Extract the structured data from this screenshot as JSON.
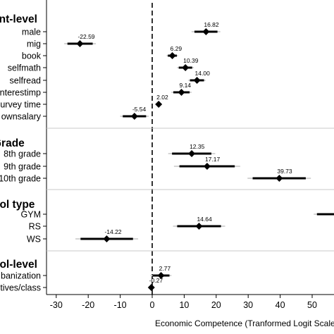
{
  "chart_data": {
    "type": "scatter",
    "subtype": "coefficient-plot",
    "xlabel": "Economic Competence (Tranformed Logit Scale from IRT)",
    "xlim": [
      -31,
      57
    ],
    "xticks": [
      -30,
      -20,
      -10,
      0,
      10,
      20,
      30,
      40,
      50
    ],
    "reference_line": 0,
    "groups": [
      {
        "label": "ent-level",
        "rows": [
          {
            "label": "male",
            "value": 16.82,
            "value_label": "16.82",
            "ci95": [
              12.3,
              21.3
            ],
            "ci90": [
              13.2,
              20.4
            ]
          },
          {
            "label": "mig",
            "value": -22.59,
            "value_label": "-22.59",
            "ci95": [
              -27.5,
              -17.6
            ],
            "ci90": [
              -26.5,
              -18.6
            ]
          },
          {
            "label": "book",
            "value": 6.29,
            "value_label": "6.29",
            "ci95": [
              4.5,
              8.1
            ],
            "ci90": [
              4.9,
              7.7
            ]
          },
          {
            "label": "selfmath",
            "value": 10.39,
            "value_label": "10.39",
            "ci95": [
              7.8,
              13.0
            ],
            "ci90": [
              8.3,
              12.5
            ]
          },
          {
            "label": "selfread",
            "value": 14.0,
            "value_label": "14.00",
            "ci95": [
              11.3,
              16.7
            ],
            "ci90": [
              11.8,
              16.2
            ]
          },
          {
            "label": "nterestimp",
            "value": 9.14,
            "value_label": "9.14",
            "ci95": [
              6.0,
              12.3
            ],
            "ci90": [
              6.6,
              11.7
            ]
          },
          {
            "label": "urvey time",
            "value": 2.02,
            "value_label": "2.02",
            "ci95": [
              1.6,
              2.4
            ],
            "ci90": [
              1.7,
              2.3
            ]
          },
          {
            "label": "ownsalary",
            "value": -5.54,
            "value_label": "-5.54",
            "ci95": [
              -10.0,
              -1.1
            ],
            "ci90": [
              -9.2,
              -1.9
            ]
          }
        ]
      },
      {
        "label": "Grade",
        "rows": [
          {
            "label": "8th grade",
            "value": 12.35,
            "value_label": "12.35",
            "ci95": [
              5.0,
              19.7
            ],
            "ci90": [
              6.2,
              18.5
            ]
          },
          {
            "label": "9th grade",
            "value": 17.17,
            "value_label": "17.17",
            "ci95": [
              6.8,
              27.5
            ],
            "ci90": [
              8.5,
              25.8
            ]
          },
          {
            "label": "10th grade",
            "value": 39.73,
            "value_label": "39.73",
            "ci95": [
              29.8,
              49.6
            ],
            "ci90": [
              31.4,
              48.0
            ]
          }
        ]
      },
      {
        "label": "ool type",
        "rows": [
          {
            "label": "GYM",
            "value": null,
            "value_label": "",
            "ci95": [
              50.5,
              57
            ],
            "ci90": [
              51.5,
              57
            ]
          },
          {
            "label": "RS",
            "value": 14.64,
            "value_label": "14.64",
            "ci95": [
              6.5,
              22.8
            ],
            "ci90": [
              7.8,
              21.5
            ]
          },
          {
            "label": "WS",
            "value": -14.22,
            "value_label": "-14.22",
            "ci95": [
              -24.0,
              -4.4
            ],
            "ci90": [
              -22.4,
              -6.0
            ]
          }
        ]
      },
      {
        "label": "ool-level",
        "rows": [
          {
            "label": "banization",
            "value": 2.77,
            "value_label": "2.77",
            "ci95": [
              -0.5,
              6.0
            ],
            "ci90": [
              0.1,
              5.4
            ]
          },
          {
            "label": "tives/class",
            "value": -0.27,
            "value_label": "-0.27",
            "ci95": [
              -0.7,
              0.2
            ],
            "ci90": [
              -0.6,
              0.1
            ]
          }
        ]
      }
    ],
    "colors": {
      "marker": "#000000",
      "ci95": "#d4d4d4",
      "ci90": "#000000",
      "divider": "#c8c8c8"
    }
  }
}
